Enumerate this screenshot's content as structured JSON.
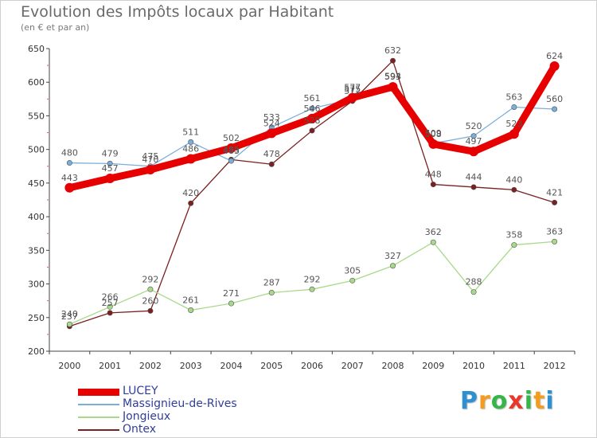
{
  "header": {
    "title": "Evolution des Impôts locaux par Habitant",
    "subtitle": "(en € et par an)"
  },
  "logo": {
    "letters": [
      "P",
      "r",
      "o",
      "x",
      "i",
      "t",
      "i"
    ],
    "colors": [
      "#2e8fd1",
      "#f39c1f",
      "#35b54a",
      "#e8382b",
      "#35b54a",
      "#f39c1f",
      "#2e8fd1"
    ]
  },
  "chart_data": {
    "type": "line",
    "title": "Evolution des Impôts locaux par Habitant",
    "subtitle": "(en € et par an)",
    "xlabel": "",
    "ylabel": "",
    "x": [
      "2000",
      "2001",
      "2002",
      "2003",
      "2004",
      "2005",
      "2006",
      "2007",
      "2008",
      "2009",
      "2010",
      "2011",
      "2012"
    ],
    "ylim": [
      200,
      650
    ],
    "yticks": [
      "200",
      "250",
      "300",
      "350",
      "400",
      "450",
      "500",
      "550",
      "600",
      "650"
    ],
    "grid": false,
    "legend_position": "bottom-left",
    "series": [
      {
        "name": "LUCEY",
        "color": "#e60000",
        "values": [
          443,
          457,
          470,
          486,
          502,
          524,
          546,
          577,
          593,
          508,
          497,
          523,
          624
        ],
        "labels": [
          "443",
          "457",
          "470",
          "486",
          "502",
          "524",
          "546",
          "577",
          "593",
          "508",
          "497",
          "523",
          "624"
        ]
      },
      {
        "name": "Massignieu-de-Rives",
        "color": "#7aaedb",
        "values": [
          480,
          479,
          475,
          511,
          483,
          533,
          561,
          575,
          594,
          509,
          520,
          563,
          560
        ],
        "labels": [
          "480",
          "479",
          "475",
          "511",
          "483",
          "533",
          "561",
          "575",
          "594",
          "509",
          "520",
          "563",
          "560"
        ]
      },
      {
        "name": "Jongieux",
        "color": "#a8d98a",
        "values": [
          240,
          266,
          292,
          261,
          271,
          287,
          292,
          305,
          327,
          362,
          288,
          358,
          363
        ],
        "labels": [
          "240",
          "266",
          "292",
          "261",
          "271",
          "287",
          "292",
          "305",
          "327",
          "362",
          "288",
          "358",
          "363"
        ]
      },
      {
        "name": "Ontex",
        "color": "#7b2020",
        "values": [
          237,
          257,
          260,
          420,
          485,
          478,
          528,
          572,
          632,
          448,
          444,
          440,
          421
        ],
        "labels": [
          "237",
          "257",
          "260",
          "420",
          "485",
          "478",
          "528",
          "572",
          "632",
          "448",
          "444",
          "440",
          "421"
        ]
      }
    ]
  }
}
